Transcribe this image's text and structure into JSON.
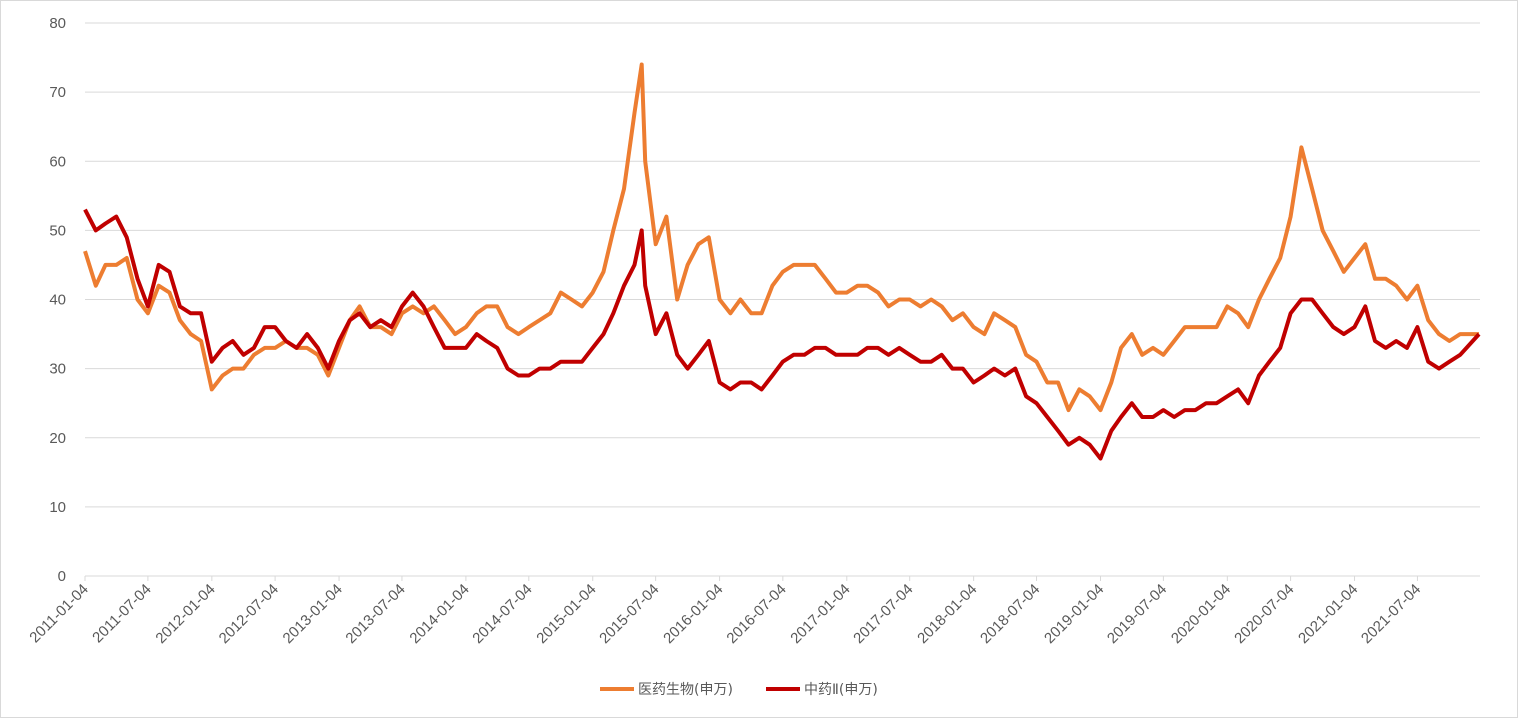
{
  "chart_data": {
    "type": "line",
    "x": [
      "2011-01-04",
      "2011-02-04",
      "2011-03-04",
      "2011-04-04",
      "2011-05-04",
      "2011-06-04",
      "2011-07-04",
      "2011-08-04",
      "2011-09-04",
      "2011-10-04",
      "2011-11-04",
      "2011-12-04",
      "2012-01-04",
      "2012-02-04",
      "2012-03-04",
      "2012-04-04",
      "2012-05-04",
      "2012-06-04",
      "2012-07-04",
      "2012-08-04",
      "2012-09-04",
      "2012-10-04",
      "2012-11-04",
      "2012-12-04",
      "2013-01-04",
      "2013-02-04",
      "2013-03-04",
      "2013-04-04",
      "2013-05-04",
      "2013-06-04",
      "2013-07-04",
      "2013-08-04",
      "2013-09-04",
      "2013-10-04",
      "2013-11-04",
      "2013-12-04",
      "2014-01-04",
      "2014-02-04",
      "2014-03-04",
      "2014-04-04",
      "2014-05-04",
      "2014-06-04",
      "2014-07-04",
      "2014-08-04",
      "2014-09-04",
      "2014-10-04",
      "2014-11-04",
      "2014-12-04",
      "2015-01-04",
      "2015-02-04",
      "2015-03-04",
      "2015-04-04",
      "2015-05-04",
      "2015-05-25",
      "2015-06-04",
      "2015-07-04",
      "2015-08-04",
      "2015-09-04",
      "2015-10-04",
      "2015-11-04",
      "2015-12-04",
      "2016-01-04",
      "2016-02-04",
      "2016-03-04",
      "2016-04-04",
      "2016-05-04",
      "2016-06-04",
      "2016-07-04",
      "2016-08-04",
      "2016-09-04",
      "2016-10-04",
      "2016-11-04",
      "2016-12-04",
      "2017-01-04",
      "2017-02-04",
      "2017-03-04",
      "2017-04-04",
      "2017-05-04",
      "2017-06-04",
      "2017-07-04",
      "2017-08-04",
      "2017-09-04",
      "2017-10-04",
      "2017-11-04",
      "2017-12-04",
      "2018-01-04",
      "2018-02-04",
      "2018-03-04",
      "2018-04-04",
      "2018-05-04",
      "2018-06-04",
      "2018-07-04",
      "2018-08-04",
      "2018-09-04",
      "2018-10-04",
      "2018-11-04",
      "2018-12-04",
      "2019-01-04",
      "2019-02-04",
      "2019-03-04",
      "2019-04-04",
      "2019-05-04",
      "2019-06-04",
      "2019-07-04",
      "2019-08-04",
      "2019-09-04",
      "2019-10-04",
      "2019-11-04",
      "2019-12-04",
      "2020-01-04",
      "2020-02-04",
      "2020-03-04",
      "2020-04-04",
      "2020-05-04",
      "2020-06-04",
      "2020-07-04",
      "2020-08-04",
      "2020-09-04",
      "2020-10-04",
      "2020-11-04",
      "2020-12-04",
      "2021-01-04",
      "2021-02-04",
      "2021-03-04",
      "2021-04-04",
      "2021-05-04",
      "2021-06-04",
      "2021-07-04",
      "2021-08-04",
      "2021-09-04",
      "2021-10-04",
      "2021-11-04",
      "2021-12-28"
    ],
    "series": [
      {
        "name": "医药生物(申万)",
        "color": "#ed7d31",
        "values": [
          47,
          42,
          45,
          45,
          46,
          40,
          38,
          42,
          41,
          37,
          35,
          34,
          27,
          29,
          30,
          30,
          32,
          33,
          33,
          34,
          33,
          33,
          32,
          29,
          33,
          37,
          39,
          36,
          36,
          35,
          38,
          39,
          38,
          39,
          37,
          35,
          36,
          38,
          39,
          39,
          36,
          35,
          36,
          37,
          38,
          41,
          40,
          39,
          41,
          44,
          50,
          56,
          67,
          74,
          60,
          48,
          52,
          40,
          45,
          48,
          49,
          40,
          38,
          40,
          38,
          38,
          42,
          44,
          45,
          45,
          45,
          43,
          41,
          41,
          42,
          42,
          41,
          39,
          40,
          40,
          39,
          40,
          39,
          37,
          38,
          36,
          35,
          38,
          37,
          36,
          32,
          31,
          28,
          28,
          24,
          27,
          26,
          24,
          28,
          33,
          35,
          32,
          33,
          32,
          34,
          36,
          36,
          36,
          36,
          39,
          38,
          36,
          40,
          43,
          46,
          52,
          62,
          56,
          50,
          47,
          44,
          46,
          48,
          43,
          43,
          42,
          40,
          42,
          37,
          35,
          34,
          35,
          35
        ]
      },
      {
        "name": "中药Ⅱ(申万)",
        "color": "#c00000",
        "values": [
          53,
          50,
          51,
          52,
          49,
          43,
          39,
          45,
          44,
          39,
          38,
          38,
          31,
          33,
          34,
          32,
          33,
          36,
          36,
          34,
          33,
          35,
          33,
          30,
          34,
          37,
          38,
          36,
          37,
          36,
          39,
          41,
          39,
          36,
          33,
          33,
          33,
          35,
          34,
          33,
          30,
          29,
          29,
          30,
          30,
          31,
          31,
          31,
          33,
          35,
          38,
          42,
          45,
          50,
          42,
          35,
          38,
          32,
          30,
          32,
          34,
          28,
          27,
          28,
          28,
          27,
          29,
          31,
          32,
          32,
          33,
          33,
          32,
          32,
          32,
          33,
          33,
          32,
          33,
          32,
          31,
          31,
          32,
          30,
          30,
          28,
          29,
          30,
          29,
          30,
          26,
          25,
          23,
          21,
          19,
          20,
          19,
          17,
          21,
          23,
          25,
          23,
          23,
          24,
          23,
          24,
          24,
          25,
          25,
          26,
          27,
          25,
          29,
          31,
          33,
          38,
          40,
          40,
          38,
          36,
          35,
          36,
          39,
          34,
          33,
          34,
          33,
          36,
          31,
          30,
          31,
          32,
          35
        ]
      }
    ],
    "xlim": [
      "2011-01-04",
      "2021-12-31"
    ],
    "xticks": [
      "2011-01-04",
      "2011-07-04",
      "2012-01-04",
      "2012-07-04",
      "2013-01-04",
      "2013-07-04",
      "2014-01-04",
      "2014-07-04",
      "2015-01-04",
      "2015-07-04",
      "2016-01-04",
      "2016-07-04",
      "2017-01-04",
      "2017-07-04",
      "2018-01-04",
      "2018-07-04",
      "2019-01-04",
      "2019-07-04",
      "2020-01-04",
      "2020-07-04",
      "2021-01-04",
      "2021-07-04"
    ],
    "ylim": [
      0,
      80
    ],
    "yticks": [
      0,
      10,
      20,
      30,
      40,
      50,
      60,
      70,
      80
    ],
    "grid": true,
    "legend": "bottom"
  }
}
